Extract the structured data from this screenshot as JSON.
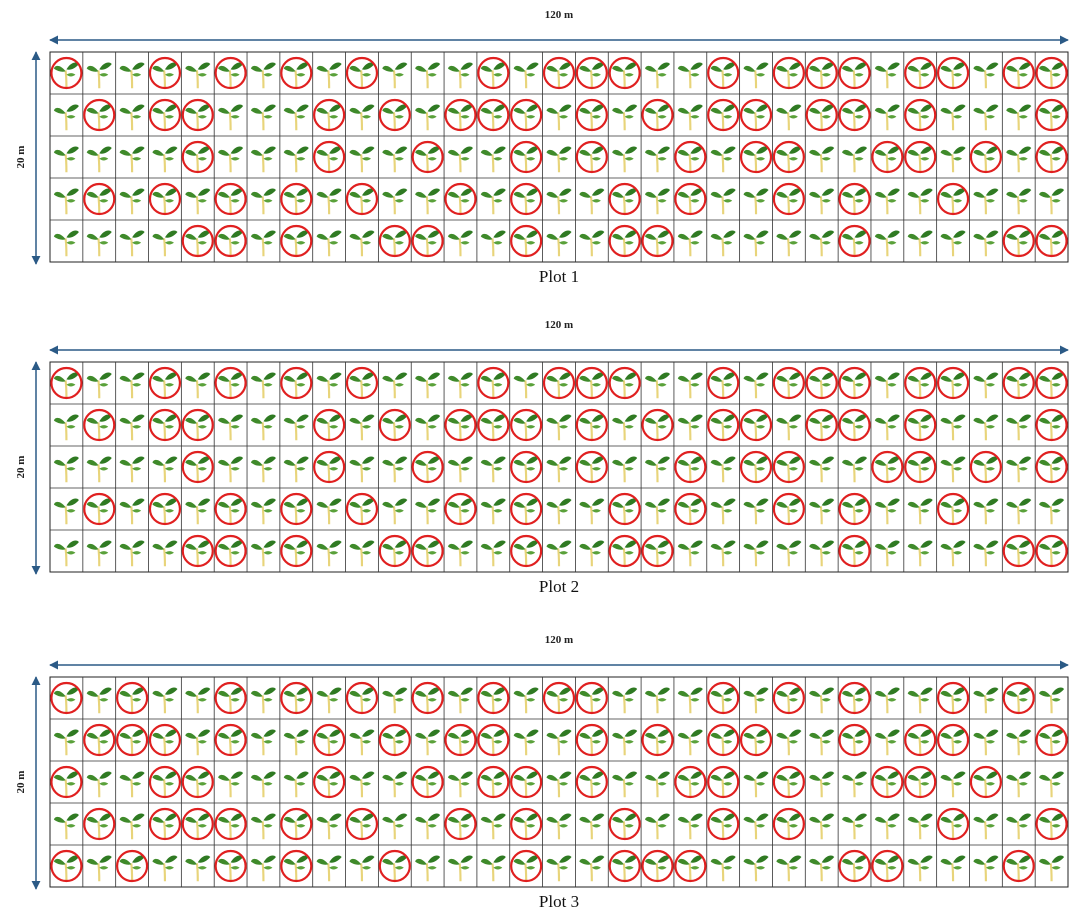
{
  "plots": [
    {
      "width_label": "120 m",
      "height_label": "20 m",
      "caption": "Plot 1"
    },
    {
      "width_label": "120 m",
      "height_label": "20 m",
      "caption": "Plot 2"
    },
    {
      "width_label": "120 m",
      "height_label": "20 m",
      "caption": "Plot 3"
    }
  ]
}
